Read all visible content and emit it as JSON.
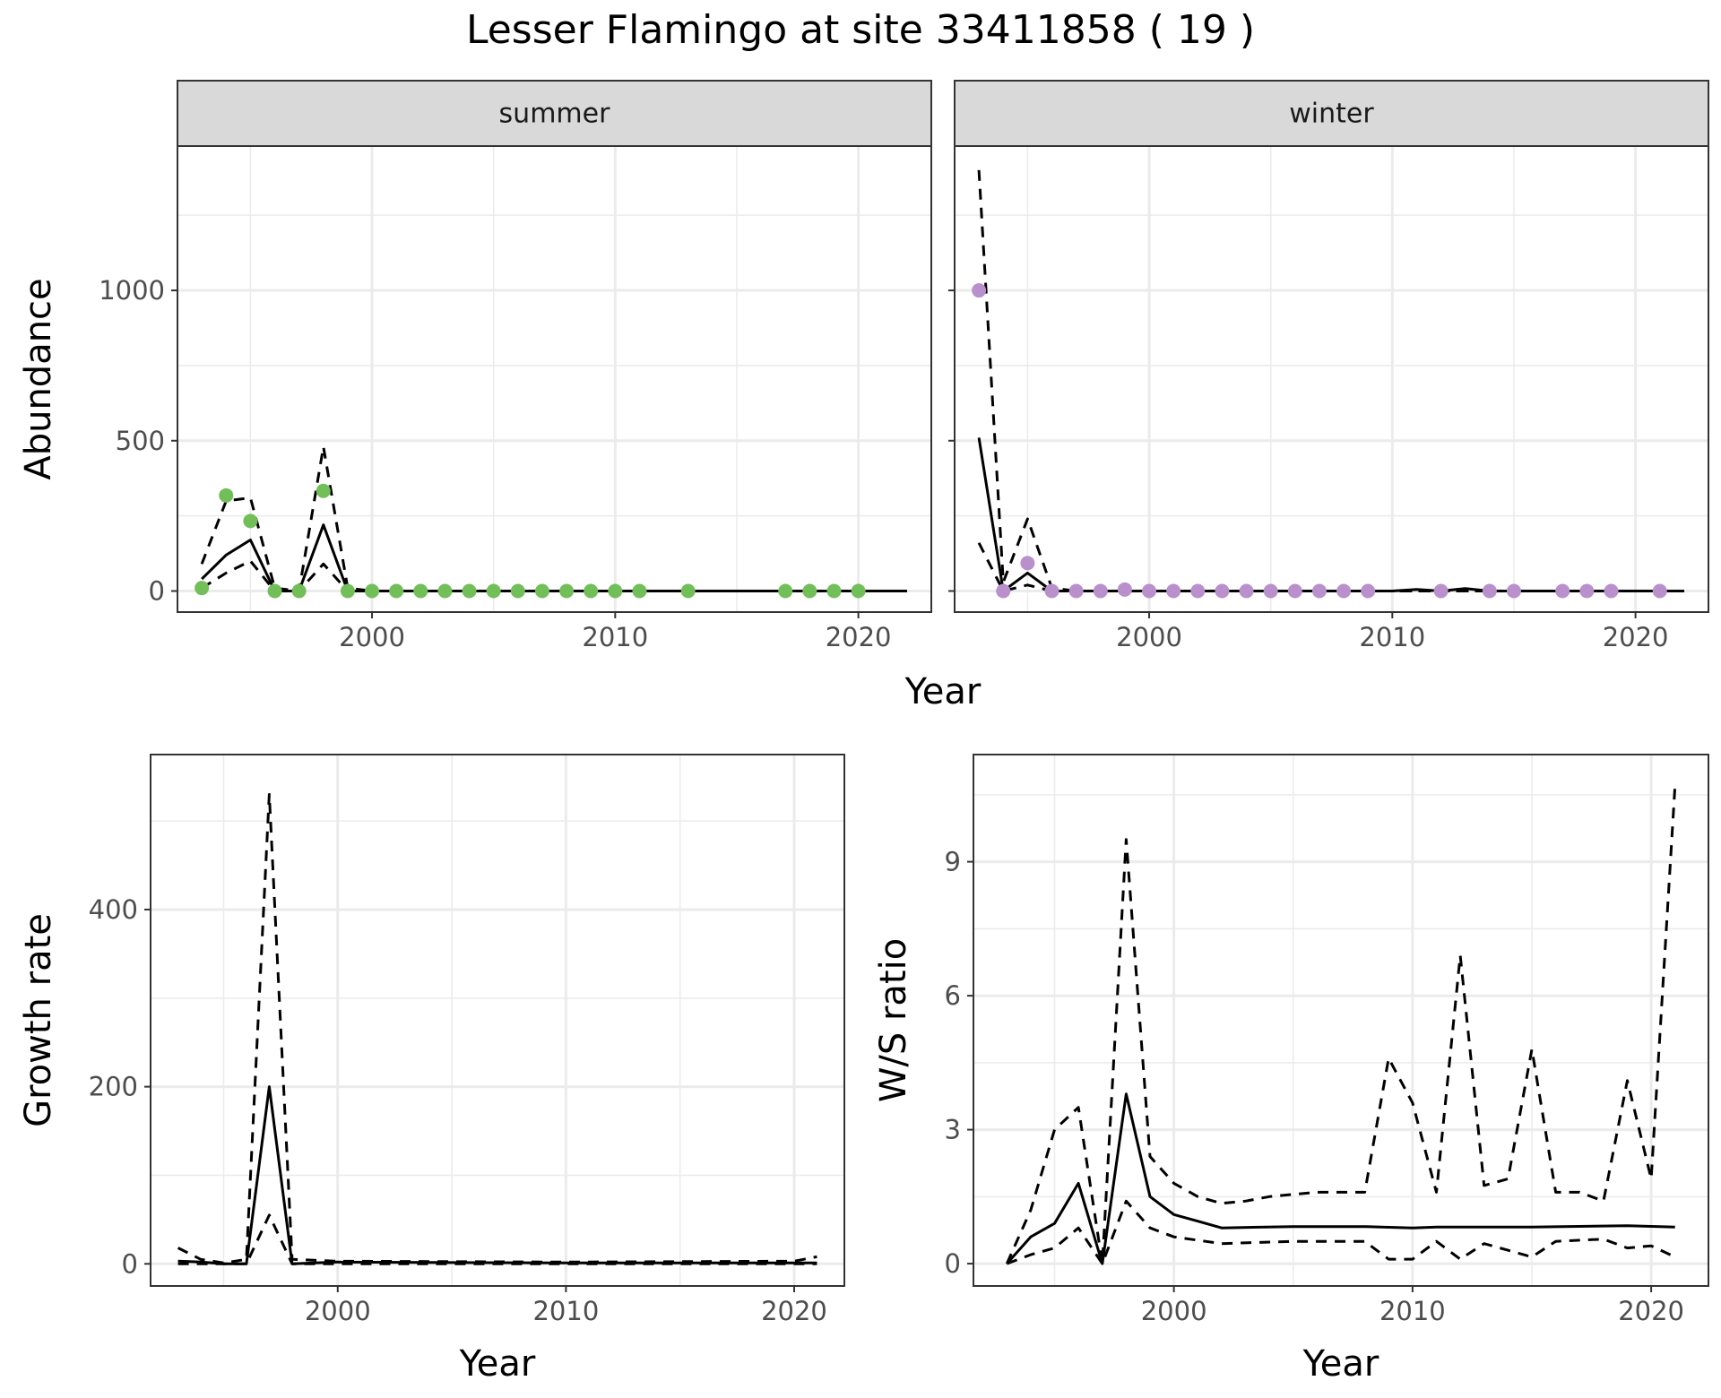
{
  "title": "Lesser Flamingo at site 33411858 ( 19 )",
  "colors": {
    "summer": "#72bf5a",
    "winter": "#b98fcc",
    "line": "#000000",
    "strip": "#d9d9d9",
    "grid": "#ebebeb"
  },
  "chart_data": [
    {
      "type": "line",
      "name": "abundance",
      "ylabel": "Abundance",
      "xlabel": "Year",
      "xlim": [
        1992,
        2023
      ],
      "ylim": [
        -70,
        1480
      ],
      "xticks": [
        2000,
        2010,
        2020
      ],
      "yticks": [
        0,
        500,
        1000
      ],
      "grid": true,
      "panels": [
        {
          "strip": "summer",
          "points": {
            "x": [
              1993,
              1994,
              1995,
              1996,
              1997,
              1998,
              1999,
              2000,
              2001,
              2002,
              2003,
              2004,
              2005,
              2006,
              2007,
              2008,
              2009,
              2010,
              2011,
              2013,
              2017,
              2018,
              2019,
              2020
            ],
            "y": [
              10,
              318,
              233,
              0,
              0,
              333,
              0,
              0,
              0,
              0,
              0,
              0,
              0,
              0,
              0,
              0,
              0,
              0,
              0,
              0,
              0,
              0,
              0,
              0
            ]
          },
          "series": [
            {
              "name": "",
              "style": "solid",
              "x": [
                1993,
                1994,
                1995,
                1996,
                1997,
                1998,
                1999,
                2000,
                2022
              ],
              "y": [
                40,
                120,
                170,
                0,
                0,
                220,
                0,
                0,
                0
              ]
            },
            {
              "name": "",
              "style": "dashed",
              "x": [
                1993,
                1994,
                1995,
                1996,
                1997,
                1998,
                1999,
                2000,
                2022
              ],
              "y": [
                90,
                300,
                310,
                10,
                0,
                480,
                10,
                0,
                0
              ]
            },
            {
              "name": "",
              "style": "dashed",
              "x": [
                1993,
                1994,
                1995,
                1996,
                1997,
                1998,
                1999,
                2000,
                2022
              ],
              "y": [
                10,
                60,
                100,
                0,
                0,
                90,
                0,
                0,
                0
              ]
            }
          ]
        },
        {
          "strip": "winter",
          "points": {
            "x": [
              1993,
              1994,
              1995,
              1996,
              1997,
              1998,
              1999,
              2000,
              2001,
              2002,
              2003,
              2004,
              2005,
              2006,
              2007,
              2008,
              2009,
              2012,
              2014,
              2015,
              2017,
              2018,
              2019,
              2021
            ],
            "y": [
              1000,
              0,
              93,
              0,
              0,
              0,
              5,
              0,
              0,
              0,
              0,
              0,
              0,
              0,
              0,
              0,
              0,
              0,
              0,
              0,
              0,
              0,
              0,
              0
            ]
          },
          "series": [
            {
              "name": "",
              "style": "solid",
              "x": [
                1993,
                1994,
                1995,
                1996,
                1997,
                2010,
                2011,
                2012,
                2013,
                2014,
                2022
              ],
              "y": [
                510,
                0,
                60,
                0,
                0,
                0,
                5,
                0,
                8,
                0,
                0
              ]
            },
            {
              "name": "",
              "style": "dashed",
              "x": [
                1993,
                1994,
                1995,
                1996,
                1997,
                2022
              ],
              "y": [
                1400,
                30,
                240,
                10,
                0,
                0
              ]
            },
            {
              "name": "",
              "style": "dashed",
              "x": [
                1993,
                1994,
                1995,
                1996,
                1997,
                2022
              ],
              "y": [
                160,
                0,
                20,
                0,
                0,
                0
              ]
            }
          ]
        }
      ]
    },
    {
      "type": "line",
      "name": "growth",
      "ylabel": "Growth rate",
      "xlabel": "Year",
      "xlim": [
        1991.8,
        2022.2
      ],
      "ylim": [
        -25,
        575
      ],
      "xticks": [
        2000,
        2010,
        2020
      ],
      "yticks": [
        0,
        200,
        400
      ],
      "grid": true,
      "series": [
        {
          "name": "",
          "style": "solid",
          "x": [
            1993,
            1994,
            1995,
            1996,
            1997,
            1998,
            2000,
            2010,
            2021
          ],
          "y": [
            3,
            2,
            0,
            0,
            200,
            0,
            2,
            1,
            1
          ]
        },
        {
          "name": "",
          "style": "dashed",
          "x": [
            1993,
            1994,
            1995,
            1996,
            1997,
            1998,
            2000,
            2010,
            2020,
            2021
          ],
          "y": [
            18,
            5,
            1,
            5,
            530,
            5,
            3,
            2,
            3,
            8
          ]
        },
        {
          "name": "",
          "style": "dashed",
          "x": [
            1993,
            1994,
            1995,
            1996,
            1997,
            1998,
            2000,
            2021
          ],
          "y": [
            0,
            0,
            0,
            0,
            55,
            0,
            0,
            0
          ]
        }
      ]
    },
    {
      "type": "line",
      "name": "ws_ratio",
      "ylabel": "W/S ratio",
      "xlabel": "Year",
      "xlim": [
        1991.6,
        2022.4
      ],
      "ylim": [
        -0.5,
        11.4
      ],
      "xticks": [
        2000,
        2010,
        2020
      ],
      "yticks": [
        0,
        3,
        6,
        9
      ],
      "grid": true,
      "series": [
        {
          "name": "",
          "style": "solid",
          "x": [
            1993,
            1994,
            1995,
            1996,
            1997,
            1998,
            1999,
            2000,
            2001,
            2002,
            2005,
            2008,
            2010,
            2011,
            2015,
            2019,
            2021
          ],
          "y": [
            0,
            0.6,
            0.9,
            1.8,
            0,
            3.8,
            1.5,
            1.1,
            0.95,
            0.8,
            0.83,
            0.83,
            0.8,
            0.82,
            0.82,
            0.85,
            0.82
          ]
        },
        {
          "name": "",
          "style": "dashed",
          "x": [
            1993,
            1994,
            1995,
            1996,
            1997,
            1998,
            1999,
            2000,
            2001,
            2002,
            2003,
            2004,
            2005,
            2006,
            2007,
            2008,
            2009,
            2010,
            2011,
            2012,
            2013,
            2014,
            2015,
            2016,
            2017,
            2018,
            2019,
            2020,
            2021
          ],
          "y": [
            0,
            1.2,
            3.0,
            3.5,
            0,
            9.5,
            2.4,
            1.8,
            1.5,
            1.35,
            1.4,
            1.5,
            1.55,
            1.6,
            1.6,
            1.6,
            4.6,
            3.6,
            1.6,
            6.9,
            1.75,
            1.9,
            4.8,
            1.6,
            1.6,
            1.4,
            4.1,
            1.9,
            10.7
          ]
        },
        {
          "name": "",
          "style": "dashed",
          "x": [
            1993,
            1994,
            1995,
            1996,
            1997,
            1998,
            1999,
            2000,
            2002,
            2005,
            2008,
            2009,
            2010,
            2011,
            2012,
            2013,
            2015,
            2016,
            2018,
            2019,
            2020,
            2021
          ],
          "y": [
            0,
            0.2,
            0.35,
            0.8,
            0,
            1.4,
            0.8,
            0.6,
            0.45,
            0.5,
            0.5,
            0.1,
            0.1,
            0.5,
            0.1,
            0.45,
            0.15,
            0.5,
            0.55,
            0.35,
            0.4,
            0.15
          ]
        }
      ]
    }
  ]
}
